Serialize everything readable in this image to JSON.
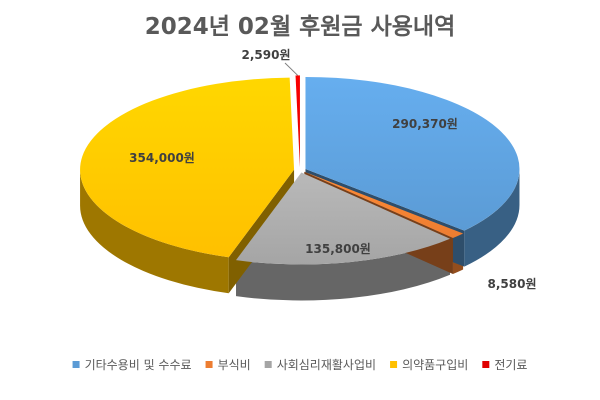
{
  "chart_data": {
    "type": "pie",
    "title": "2024년 02월 후원금 사용내역",
    "unit_suffix": "원",
    "categories": [
      "기타수용비 및 수수료",
      "부식비",
      "사회심리재활사업비",
      "의약품구입비",
      "전기료"
    ],
    "values": [
      290370,
      8580,
      135800,
      354000,
      2590
    ],
    "data_labels": [
      "290,370원",
      "8,580원",
      "135,800원",
      "354,000원",
      "2,590원"
    ],
    "colors": [
      "#5B9BD5",
      "#ED7D31",
      "#A5A5A5",
      "#FFC000",
      "#E00000"
    ],
    "legend_position": "bottom",
    "style": "3d-exploded"
  }
}
